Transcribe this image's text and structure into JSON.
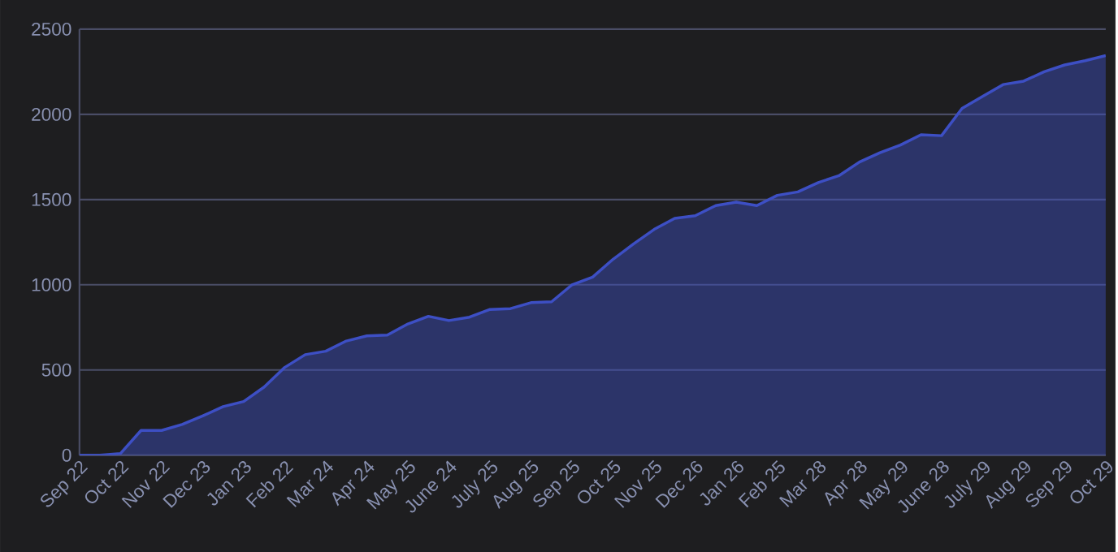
{
  "chart_data": {
    "type": "area",
    "categories": [
      "Sep 22",
      null,
      "Oct 22",
      null,
      "Nov 22",
      null,
      "Dec 23",
      null,
      "Jan 23",
      null,
      "Feb 22",
      null,
      "Mar 24",
      null,
      "Apr 24",
      null,
      "May 25",
      null,
      "June 24",
      null,
      "July 25",
      null,
      "Aug 25",
      null,
      "Sep 25",
      null,
      "Oct 25",
      null,
      "Nov 25",
      null,
      "Dec 26",
      null,
      "Jan 26",
      null,
      "Feb 25",
      null,
      "Mar 28",
      null,
      "Apr 28",
      null,
      "May 29",
      null,
      "June 28",
      null,
      "July 29",
      null,
      "Aug 29",
      null,
      "Sep 29",
      null,
      "Oct 29"
    ],
    "values": [
      0,
      0,
      10,
      145,
      145,
      180,
      230,
      285,
      315,
      400,
      515,
      590,
      610,
      670,
      700,
      705,
      770,
      815,
      790,
      810,
      855,
      860,
      895,
      900,
      1000,
      1045,
      1150,
      1240,
      1325,
      1390,
      1405,
      1465,
      1485,
      1465,
      1525,
      1545,
      1600,
      1640,
      1720,
      1775,
      1820,
      1880,
      1875,
      2035,
      2105,
      2175,
      2195,
      2250,
      2290,
      2315,
      2345
    ],
    "color": "#3d4fc4",
    "ylim": [
      0,
      2500
    ],
    "yticks": [
      0,
      500,
      1000,
      1500,
      2000,
      2500
    ],
    "grid": "y",
    "marker": "none",
    "line_style": "solid"
  }
}
